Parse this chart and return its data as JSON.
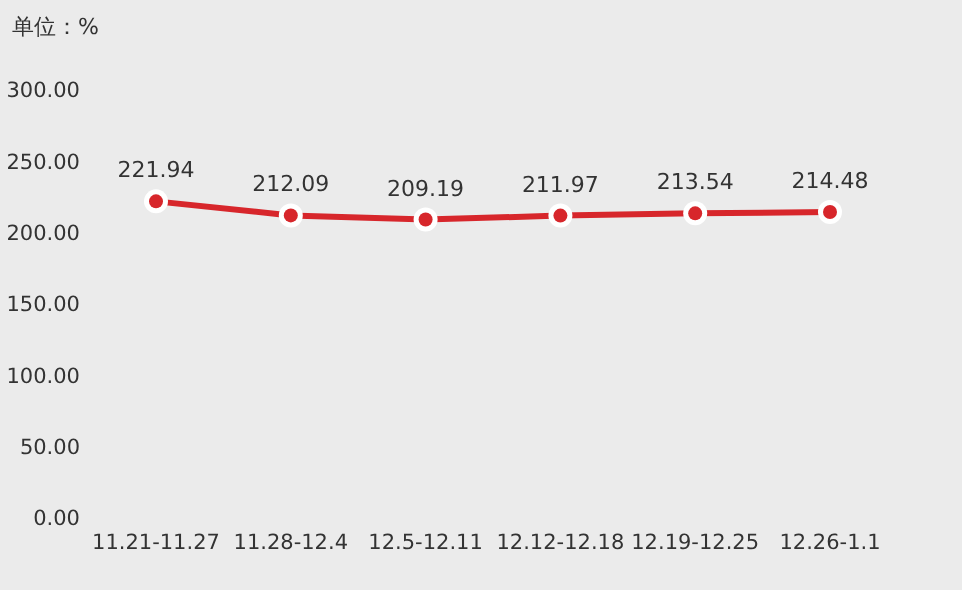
{
  "chart_data": {
    "type": "line",
    "ylabel": "单位：%",
    "categories": [
      "11.21-11.27",
      "11.28-12.4",
      "12.5-12.11",
      "12.12-12.18",
      "12.19-12.25",
      "12.26-1.1"
    ],
    "series": [
      {
        "color": "#d7262b",
        "values": [
          221.94,
          212.09,
          209.19,
          211.97,
          213.54,
          214.48
        ]
      }
    ],
    "ylim": [
      0,
      300
    ],
    "yticks": [
      {
        "value": 0,
        "label": "0.00"
      },
      {
        "value": 50,
        "label": "50.00"
      },
      {
        "value": 100,
        "label": "100.00"
      },
      {
        "value": 150,
        "label": "150.00"
      },
      {
        "value": 200,
        "label": "200.00"
      },
      {
        "value": 250,
        "label": "250.00"
      },
      {
        "value": 300,
        "label": "300.00"
      }
    ],
    "grid": false,
    "marker": "circle",
    "line_style": "solid",
    "data_labels": true
  }
}
